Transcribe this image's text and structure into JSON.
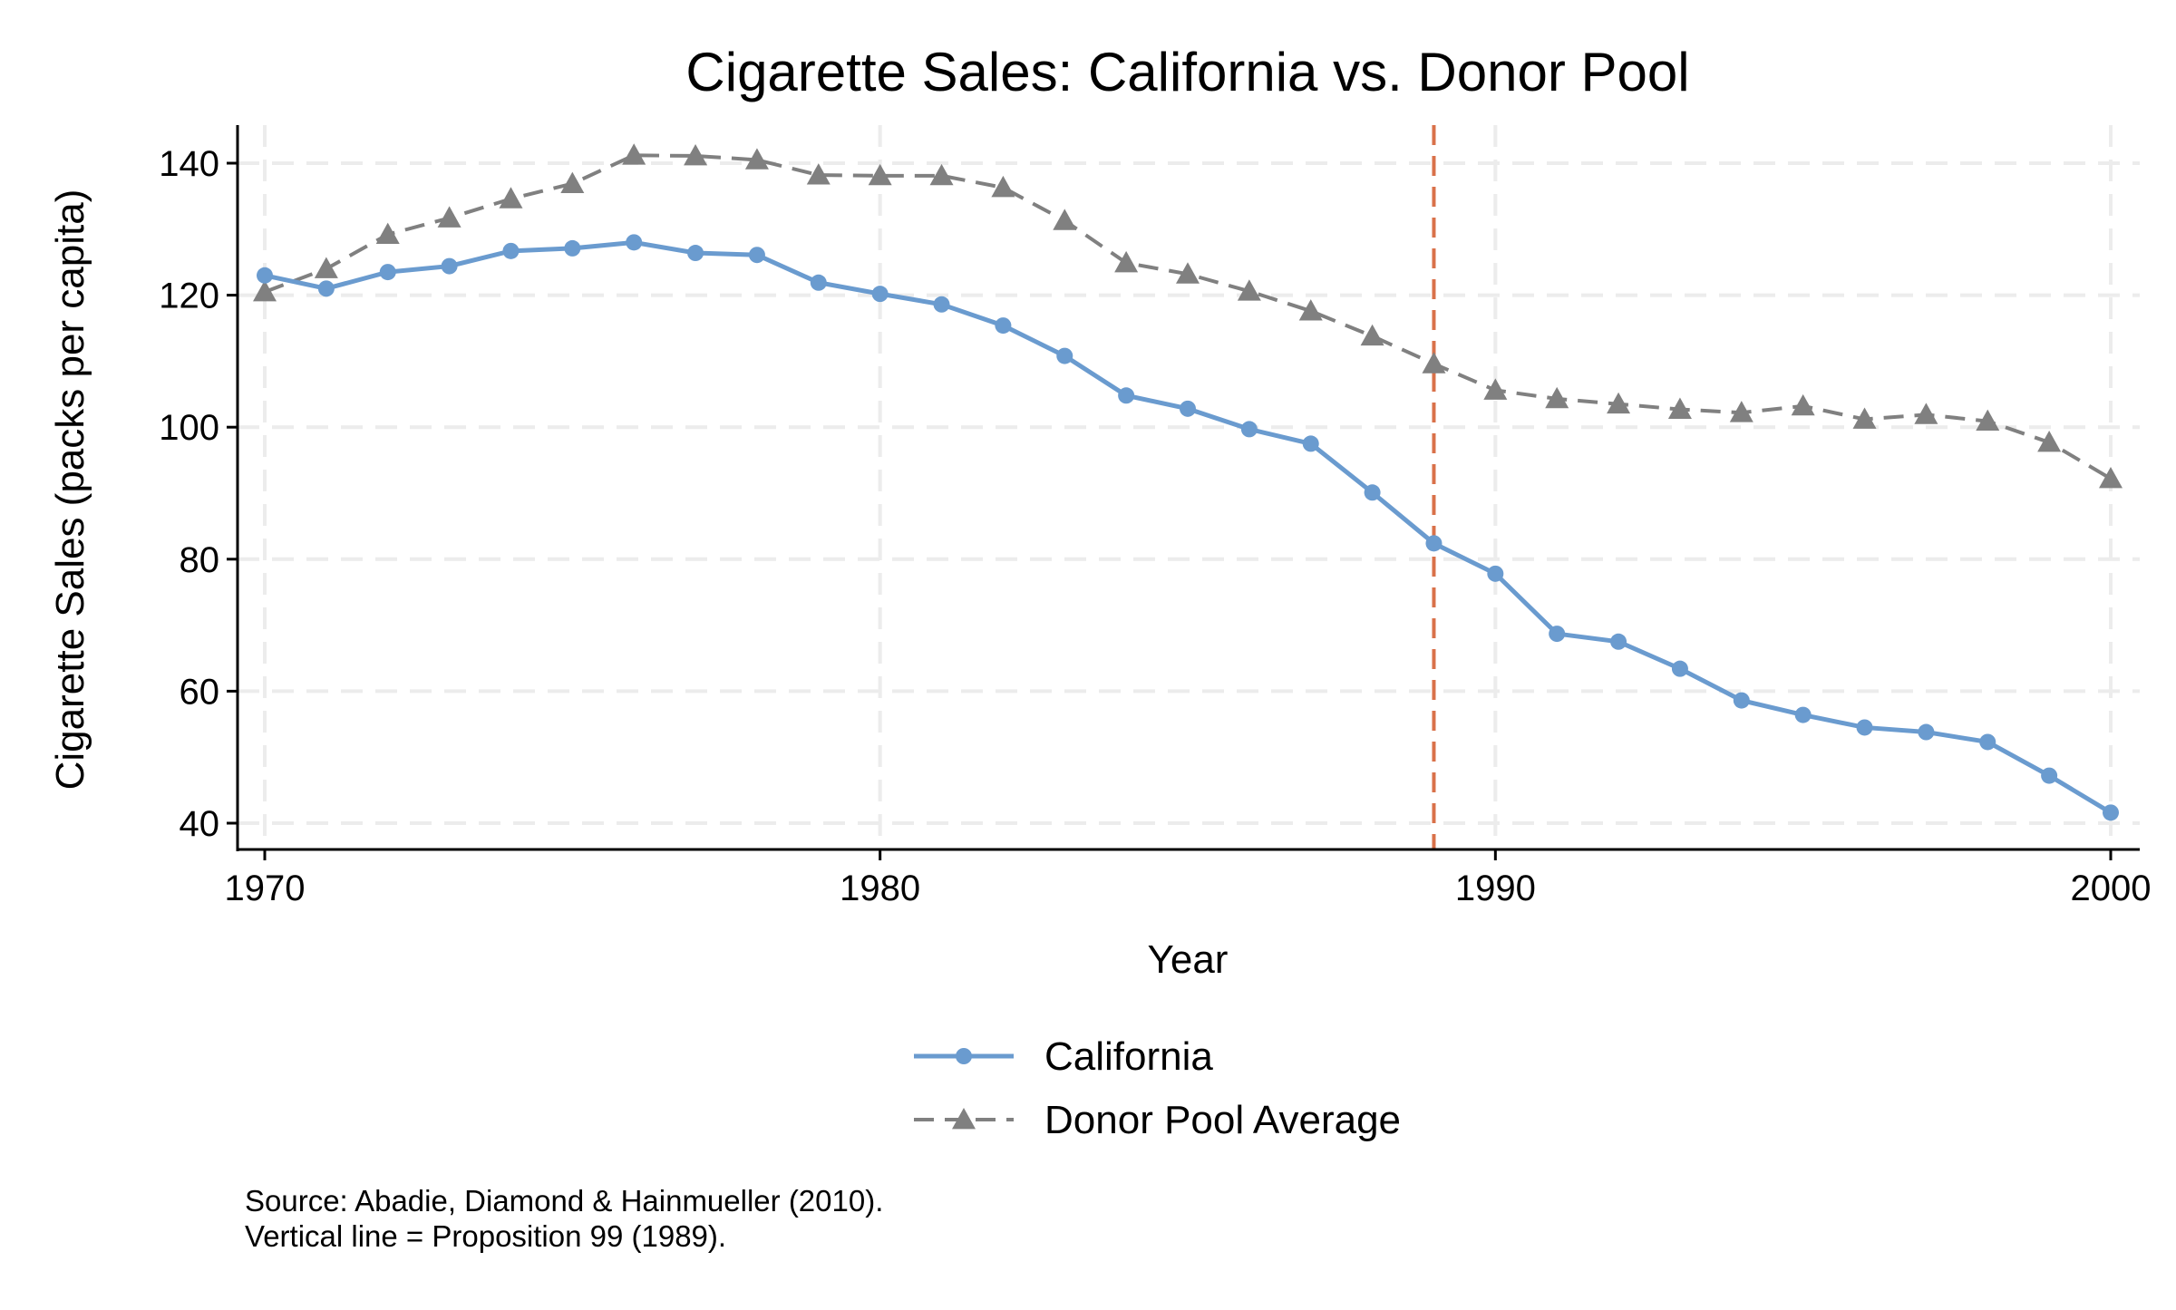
{
  "chart_data": {
    "type": "line",
    "title": "Cigarette Sales: California vs. Donor Pool",
    "xlabel": "Year",
    "ylabel": "Cigarette Sales (packs per capita)",
    "xlim": [
      1970,
      2000
    ],
    "ylim": [
      35,
      145
    ],
    "xticks": [
      1970,
      1980,
      1990,
      2000
    ],
    "yticks": [
      40,
      60,
      80,
      100,
      120,
      140
    ],
    "grid": true,
    "legend_position": "bottom",
    "x": [
      1970,
      1971,
      1972,
      1973,
      1974,
      1975,
      1976,
      1977,
      1978,
      1979,
      1980,
      1981,
      1982,
      1983,
      1984,
      1985,
      1986,
      1987,
      1988,
      1989,
      1990,
      1991,
      1992,
      1993,
      1994,
      1995,
      1996,
      1997,
      1998,
      1999,
      2000
    ],
    "series": [
      {
        "name": "California",
        "color": "#6a9bcf",
        "marker": "circle",
        "line": "solid",
        "values": [
          123,
          121,
          123.5,
          124.4,
          126.7,
          127.1,
          128,
          126.4,
          126.1,
          121.9,
          120.2,
          118.6,
          115.4,
          110.8,
          104.8,
          102.8,
          99.7,
          97.5,
          90.1,
          82.4,
          77.8,
          68.7,
          67.5,
          63.4,
          58.6,
          56.4,
          54.5,
          53.8,
          52.3,
          47.2,
          41.6
        ]
      },
      {
        "name": "Donor Pool Average",
        "color": "#808080",
        "marker": "triangle",
        "line": "dashed",
        "values": [
          120.5,
          124,
          129.2,
          131.7,
          134.6,
          136.9,
          141.2,
          141.1,
          140.5,
          138.2,
          138.1,
          138.1,
          136.3,
          131.3,
          124.9,
          123.2,
          120.6,
          117.6,
          113.8,
          109.6,
          105.6,
          104.3,
          103.5,
          102.7,
          102.2,
          103.2,
          101.2,
          101.9,
          100.9,
          97.7,
          92.2
        ]
      }
    ],
    "reference_line": {
      "x": 1989,
      "color": "#d9714a",
      "style": "dashed"
    },
    "notes": [
      "Source: Abadie, Diamond & Hainmueller (2010).",
      "Vertical line = Proposition 99 (1989)."
    ]
  }
}
